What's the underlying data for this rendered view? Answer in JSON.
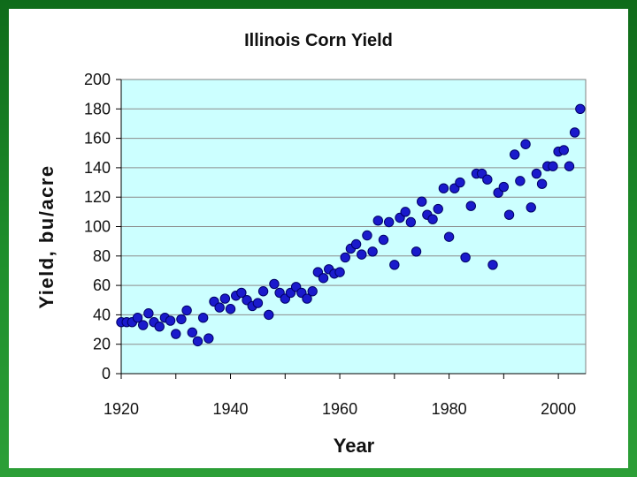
{
  "chart_data": {
    "type": "scatter",
    "title": "Illinois Corn Yield",
    "xlabel": "Year",
    "ylabel": "Yield, bu/acre",
    "xlim": [
      1920,
      2005
    ],
    "ylim": [
      0,
      200
    ],
    "x_ticks": [
      1920,
      1940,
      1960,
      1980,
      2000
    ],
    "y_ticks": [
      0,
      20,
      40,
      60,
      80,
      100,
      120,
      140,
      160,
      180,
      200
    ],
    "grid": "horizontal",
    "colors": {
      "plot_bg": "#ccffff",
      "marker": "#1a1acc",
      "marker_edge": "#000066",
      "gridline": "#8c8c8c"
    },
    "series": [
      {
        "points": [
          [
            1920,
            35
          ],
          [
            1921,
            35
          ],
          [
            1922,
            35
          ],
          [
            1923,
            38
          ],
          [
            1924,
            33
          ],
          [
            1925,
            41
          ],
          [
            1926,
            35
          ],
          [
            1927,
            32
          ],
          [
            1928,
            38
          ],
          [
            1929,
            36
          ],
          [
            1930,
            27
          ],
          [
            1931,
            37
          ],
          [
            1932,
            43
          ],
          [
            1933,
            28
          ],
          [
            1934,
            22
          ],
          [
            1935,
            38
          ],
          [
            1936,
            24
          ],
          [
            1937,
            49
          ],
          [
            1938,
            45
          ],
          [
            1939,
            51
          ],
          [
            1940,
            44
          ],
          [
            1941,
            53
          ],
          [
            1942,
            55
          ],
          [
            1943,
            50
          ],
          [
            1944,
            46
          ],
          [
            1945,
            48
          ],
          [
            1946,
            56
          ],
          [
            1947,
            40
          ],
          [
            1948,
            61
          ],
          [
            1949,
            55
          ],
          [
            1950,
            51
          ],
          [
            1951,
            55
          ],
          [
            1952,
            59
          ],
          [
            1953,
            55
          ],
          [
            1954,
            51
          ],
          [
            1955,
            56
          ],
          [
            1956,
            69
          ],
          [
            1957,
            65
          ],
          [
            1958,
            71
          ],
          [
            1959,
            68
          ],
          [
            1960,
            69
          ],
          [
            1961,
            79
          ],
          [
            1962,
            85
          ],
          [
            1963,
            88
          ],
          [
            1964,
            81
          ],
          [
            1965,
            94
          ],
          [
            1966,
            83
          ],
          [
            1967,
            104
          ],
          [
            1968,
            91
          ],
          [
            1969,
            103
          ],
          [
            1970,
            74
          ],
          [
            1971,
            106
          ],
          [
            1972,
            110
          ],
          [
            1973,
            103
          ],
          [
            1974,
            83
          ],
          [
            1975,
            117
          ],
          [
            1976,
            108
          ],
          [
            1977,
            105
          ],
          [
            1978,
            112
          ],
          [
            1979,
            126
          ],
          [
            1980,
            93
          ],
          [
            1981,
            126
          ],
          [
            1982,
            130
          ],
          [
            1983,
            79
          ],
          [
            1984,
            114
          ],
          [
            1985,
            136
          ],
          [
            1986,
            136
          ],
          [
            1987,
            132
          ],
          [
            1988,
            74
          ],
          [
            1989,
            123
          ],
          [
            1990,
            127
          ],
          [
            1991,
            108
          ],
          [
            1992,
            149
          ],
          [
            1993,
            131
          ],
          [
            1994,
            156
          ],
          [
            1995,
            113
          ],
          [
            1996,
            136
          ],
          [
            1997,
            129
          ],
          [
            1998,
            141
          ],
          [
            1999,
            141
          ],
          [
            2000,
            151
          ],
          [
            2001,
            152
          ],
          [
            2002,
            141
          ],
          [
            2003,
            164
          ],
          [
            2004,
            180
          ]
        ]
      }
    ]
  }
}
